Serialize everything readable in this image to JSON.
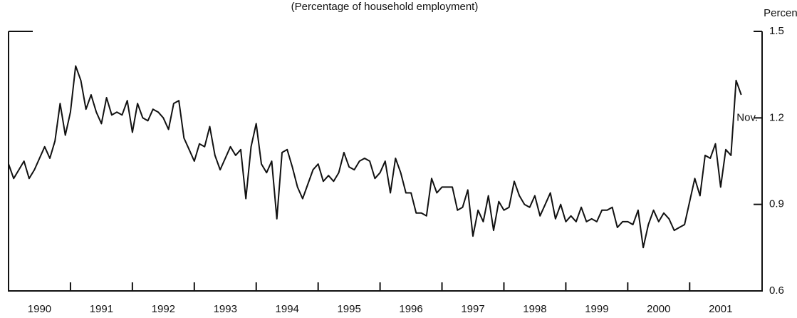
{
  "chart_data": {
    "type": "line",
    "subtitle": "(Percentage of household employment)",
    "y_axis_label": "Percent",
    "annotation": "Nov.",
    "color": "#111111",
    "xlim": [
      1990,
      2002.17
    ],
    "ylim": [
      0.6,
      1.5
    ],
    "yticks": [
      0.6,
      0.9,
      1.2,
      1.5
    ],
    "xticks": [
      {
        "value": 1990.5,
        "label": "1990"
      },
      {
        "value": 1991.5,
        "label": "1991"
      },
      {
        "value": 1992.5,
        "label": "1992"
      },
      {
        "value": 1993.5,
        "label": "1993"
      },
      {
        "value": 1994.5,
        "label": "1994"
      },
      {
        "value": 1995.5,
        "label": "1995"
      },
      {
        "value": 1996.5,
        "label": "1996"
      },
      {
        "value": 1997.5,
        "label": "1997"
      },
      {
        "value": 1998.5,
        "label": "1998"
      },
      {
        "value": 1999.5,
        "label": "1999"
      },
      {
        "value": 2000.5,
        "label": "2000"
      },
      {
        "value": 2001.5,
        "label": "2001"
      }
    ],
    "series": [
      {
        "name": "Percentage of household employment",
        "color": "#111111",
        "x": [
          1990,
          1990.083,
          1990.167,
          1990.25,
          1990.333,
          1990.417,
          1990.5,
          1990.583,
          1990.667,
          1990.75,
          1990.833,
          1990.917,
          1991,
          1991.083,
          1991.167,
          1991.25,
          1991.333,
          1991.417,
          1991.5,
          1991.583,
          1991.667,
          1991.75,
          1991.833,
          1991.917,
          1992,
          1992.083,
          1992.167,
          1992.25,
          1992.333,
          1992.417,
          1992.5,
          1992.583,
          1992.667,
          1992.75,
          1992.833,
          1992.917,
          1993,
          1993.083,
          1993.167,
          1993.25,
          1993.333,
          1993.417,
          1993.5,
          1993.583,
          1993.667,
          1993.75,
          1993.833,
          1993.917,
          1994,
          1994.083,
          1994.167,
          1994.25,
          1994.333,
          1994.417,
          1994.5,
          1994.583,
          1994.667,
          1994.75,
          1994.833,
          1994.917,
          1995,
          1995.083,
          1995.167,
          1995.25,
          1995.333,
          1995.417,
          1995.5,
          1995.583,
          1995.667,
          1995.75,
          1995.833,
          1995.917,
          1996,
          1996.083,
          1996.167,
          1996.25,
          1996.333,
          1996.417,
          1996.5,
          1996.583,
          1996.667,
          1996.75,
          1996.833,
          1996.917,
          1997,
          1997.083,
          1997.167,
          1997.25,
          1997.333,
          1997.417,
          1997.5,
          1997.583,
          1997.667,
          1997.75,
          1997.833,
          1997.917,
          1998,
          1998.083,
          1998.167,
          1998.25,
          1998.333,
          1998.417,
          1998.5,
          1998.583,
          1998.667,
          1998.75,
          1998.833,
          1998.917,
          1999,
          1999.083,
          1999.167,
          1999.25,
          1999.333,
          1999.417,
          1999.5,
          1999.583,
          1999.667,
          1999.75,
          1999.833,
          1999.917,
          2000,
          2000.083,
          2000.167,
          2000.25,
          2000.333,
          2000.417,
          2000.5,
          2000.583,
          2000.667,
          2000.75,
          2000.833,
          2000.917,
          2001,
          2001.083,
          2001.167,
          2001.25,
          2001.333,
          2001.417,
          2001.5,
          2001.583,
          2001.667,
          2001.75,
          2001.833
        ],
        "values": [
          1.04,
          0.99,
          1.02,
          1.05,
          0.99,
          1.02,
          1.06,
          1.1,
          1.06,
          1.12,
          1.25,
          1.14,
          1.22,
          1.38,
          1.33,
          1.23,
          1.28,
          1.22,
          1.18,
          1.27,
          1.21,
          1.22,
          1.21,
          1.26,
          1.15,
          1.25,
          1.2,
          1.19,
          1.23,
          1.22,
          1.2,
          1.16,
          1.25,
          1.26,
          1.13,
          1.09,
          1.05,
          1.11,
          1.1,
          1.17,
          1.07,
          1.02,
          1.06,
          1.1,
          1.07,
          1.09,
          0.92,
          1.1,
          1.18,
          1.04,
          1.01,
          1.05,
          0.85,
          1.08,
          1.09,
          1.03,
          0.96,
          0.92,
          0.97,
          1.02,
          1.04,
          0.98,
          1.0,
          0.98,
          1.01,
          1.08,
          1.03,
          1.02,
          1.05,
          1.06,
          1.05,
          0.99,
          1.01,
          1.05,
          0.94,
          1.06,
          1.01,
          0.94,
          0.94,
          0.87,
          0.87,
          0.86,
          0.99,
          0.94,
          0.96,
          0.96,
          0.96,
          0.88,
          0.89,
          0.95,
          0.79,
          0.88,
          0.84,
          0.93,
          0.81,
          0.91,
          0.88,
          0.89,
          0.98,
          0.93,
          0.9,
          0.89,
          0.93,
          0.86,
          0.9,
          0.94,
          0.85,
          0.9,
          0.84,
          0.86,
          0.84,
          0.89,
          0.84,
          0.85,
          0.84,
          0.88,
          0.88,
          0.89,
          0.82,
          0.84,
          0.84,
          0.83,
          0.88,
          0.75,
          0.83,
          0.88,
          0.84,
          0.87,
          0.85,
          0.81,
          0.82,
          0.83,
          0.91,
          0.99,
          0.93,
          1.07,
          1.06,
          1.11,
          0.96,
          1.09,
          1.07,
          1.33,
          1.28
        ]
      }
    ]
  }
}
